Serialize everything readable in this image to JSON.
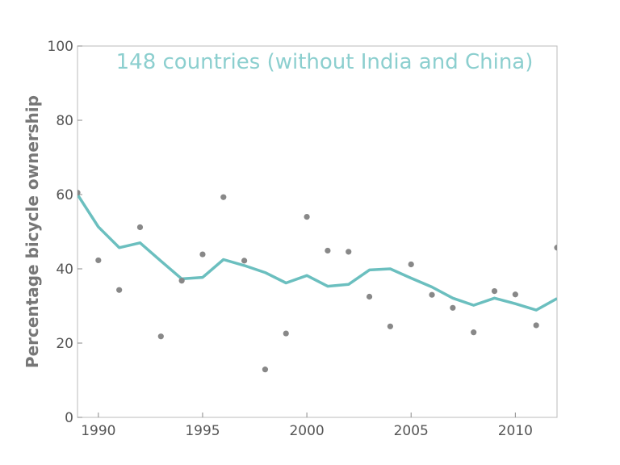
{
  "chart_data": {
    "type": "line",
    "title": "148 countries (without India and China)",
    "xlabel": "",
    "ylabel": "Percentage bicycle ownership",
    "xlim": [
      1989,
      2012
    ],
    "ylim": [
      0,
      100
    ],
    "x_ticks": [
      "1990",
      "1995",
      "2000",
      "2005",
      "2010"
    ],
    "y_ticks": [
      "0",
      "20",
      "40",
      "60",
      "80",
      "100"
    ],
    "grid": false,
    "colors": {
      "line": "#6bbfbf",
      "title": "#8ccfcf",
      "points": "#888888",
      "axis": "#bbbbbb"
    },
    "series": [
      {
        "type": "scatter",
        "x": [
          1989,
          1990,
          1991,
          1992,
          1993,
          1994,
          1995,
          1996,
          1997,
          1998,
          1999,
          2000,
          2001,
          2002,
          2003,
          2004,
          2005,
          2006,
          2007,
          2008,
          2009,
          2010,
          2011,
          2012
        ],
        "values": [
          60.5,
          42.3,
          34.3,
          51.2,
          21.8,
          36.8,
          43.9,
          59.3,
          42.2,
          12.9,
          22.6,
          54.0,
          44.9,
          44.6,
          32.5,
          24.5,
          41.2,
          33.0,
          29.5,
          22.9,
          34.0,
          33.1,
          24.8,
          45.7
        ]
      },
      {
        "type": "line",
        "x": [
          1989,
          1990,
          1991,
          1992,
          1993,
          1994,
          1995,
          1996,
          1997,
          1998,
          1999,
          2000,
          2001,
          2002,
          2003,
          2004,
          2005,
          2006,
          2007,
          2008,
          2009,
          2010,
          2011,
          2012
        ],
        "values": [
          60.0,
          51.3,
          45.7,
          47.0,
          42.1,
          37.3,
          37.7,
          42.5,
          40.9,
          39.0,
          36.2,
          38.2,
          35.3,
          35.8,
          39.7,
          40.0,
          37.5,
          35.1,
          32.1,
          30.2,
          32.1,
          30.6,
          28.9,
          32.0
        ]
      }
    ]
  }
}
